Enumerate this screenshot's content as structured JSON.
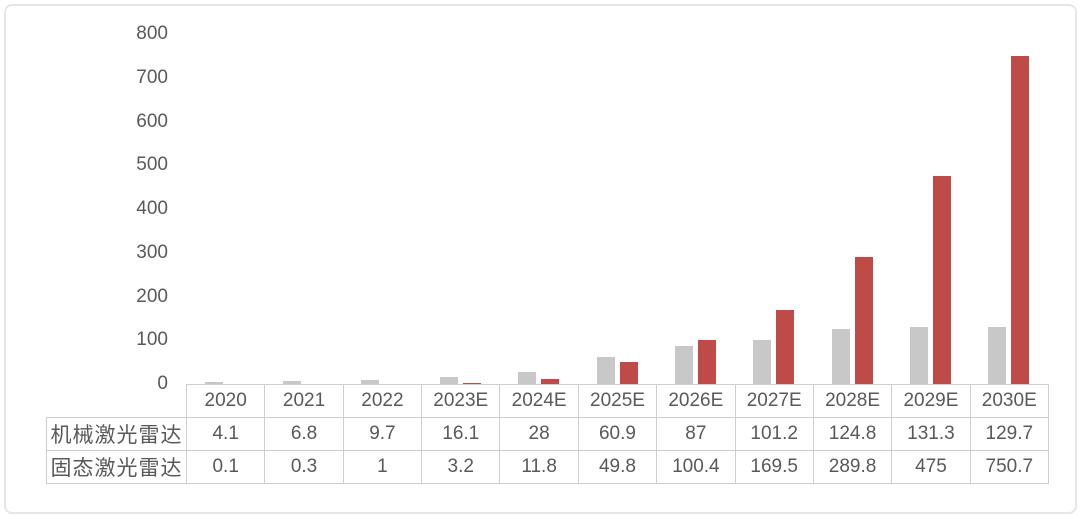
{
  "chart_data": {
    "type": "bar",
    "categories": [
      "2020",
      "2021",
      "2022",
      "2023E",
      "2024E",
      "2025E",
      "2026E",
      "2027E",
      "2028E",
      "2029E",
      "2030E"
    ],
    "series": [
      {
        "name": "机械激光雷达",
        "color": "#c8c8c8",
        "values": [
          4.1,
          6.8,
          9.7,
          16.1,
          28,
          60.9,
          87,
          101.2,
          124.8,
          131.3,
          129.7
        ]
      },
      {
        "name": "固态激光雷达",
        "color": "#bf4b49",
        "values": [
          0.1,
          0.3,
          1,
          3.2,
          11.8,
          49.8,
          100.4,
          169.5,
          289.8,
          475,
          750.7
        ]
      }
    ],
    "title": "",
    "xlabel": "",
    "ylabel": "",
    "ylim": [
      0,
      800
    ],
    "yticks": [
      0,
      100,
      200,
      300,
      400,
      500,
      600,
      700,
      800
    ],
    "grid": false,
    "legend_position": "table-below-row-labels"
  },
  "colors": {
    "bar_gray": "#c8c8c8",
    "bar_red": "#bf4b49",
    "text": "#595959",
    "table_border": "#cfcdcd",
    "card_border": "#e6e6e6",
    "background": "#ffffff"
  }
}
